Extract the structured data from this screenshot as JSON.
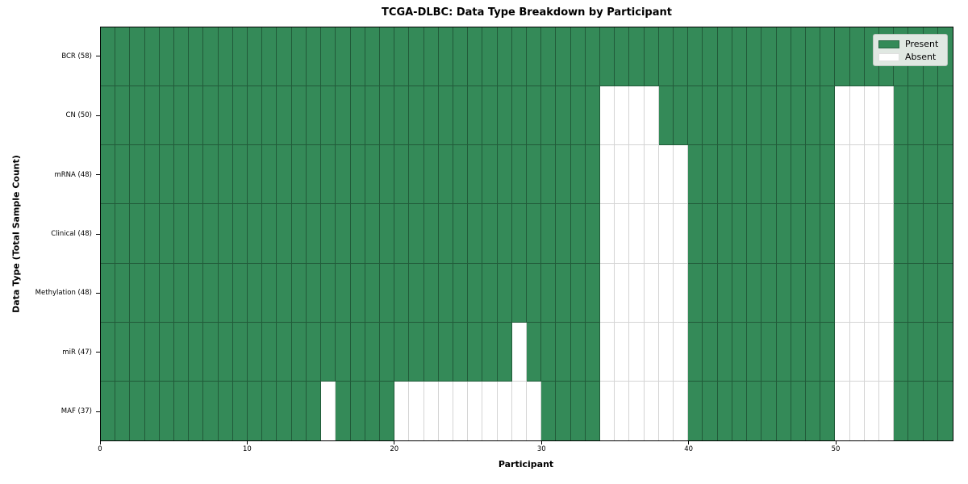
{
  "chart_data": {
    "type": "heatmap",
    "title": "TCGA-DLBC: Data Type Breakdown by Participant",
    "xlabel": "Participant",
    "ylabel": "Data Type (Total Sample Count)",
    "n_participants": 58,
    "x_ticks": [
      0,
      10,
      20,
      30,
      40,
      50
    ],
    "x_range": [
      0,
      58
    ],
    "grid": true,
    "legend_position": "upper right",
    "legend": [
      {
        "label": "Present",
        "color": "#348a58"
      },
      {
        "label": "Absent",
        "color": "#ffffff"
      }
    ],
    "rows": [
      {
        "label": "BCR (58)",
        "data_type": "BCR",
        "total_samples": 58,
        "absent_participants": []
      },
      {
        "label": "CN (50)",
        "data_type": "CN",
        "total_samples": 50,
        "absent_participants": [
          34,
          35,
          36,
          37,
          50,
          51,
          52,
          53
        ]
      },
      {
        "label": "mRNA (48)",
        "data_type": "mRNA",
        "total_samples": 48,
        "absent_participants": [
          34,
          35,
          36,
          37,
          38,
          39,
          50,
          51,
          52,
          53
        ]
      },
      {
        "label": "Clinical (48)",
        "data_type": "Clinical",
        "total_samples": 48,
        "absent_participants": [
          34,
          35,
          36,
          37,
          38,
          39,
          50,
          51,
          52,
          53
        ]
      },
      {
        "label": "Methylation (48)",
        "data_type": "Methylation",
        "total_samples": 48,
        "absent_participants": [
          34,
          35,
          36,
          37,
          38,
          39,
          50,
          51,
          52,
          53
        ]
      },
      {
        "label": "miR (47)",
        "data_type": "miR",
        "total_samples": 47,
        "absent_participants": [
          28,
          34,
          35,
          36,
          37,
          38,
          39,
          50,
          51,
          52,
          53
        ]
      },
      {
        "label": "MAF (37)",
        "data_type": "MAF",
        "total_samples": 37,
        "absent_participants": [
          15,
          20,
          21,
          22,
          23,
          24,
          25,
          26,
          27,
          28,
          29,
          34,
          35,
          36,
          37,
          38,
          39,
          50,
          51,
          52,
          53
        ]
      }
    ],
    "colors": {
      "present": "#348a58",
      "absent": "#ffffff",
      "legend_background": "#e0e8e2"
    }
  }
}
